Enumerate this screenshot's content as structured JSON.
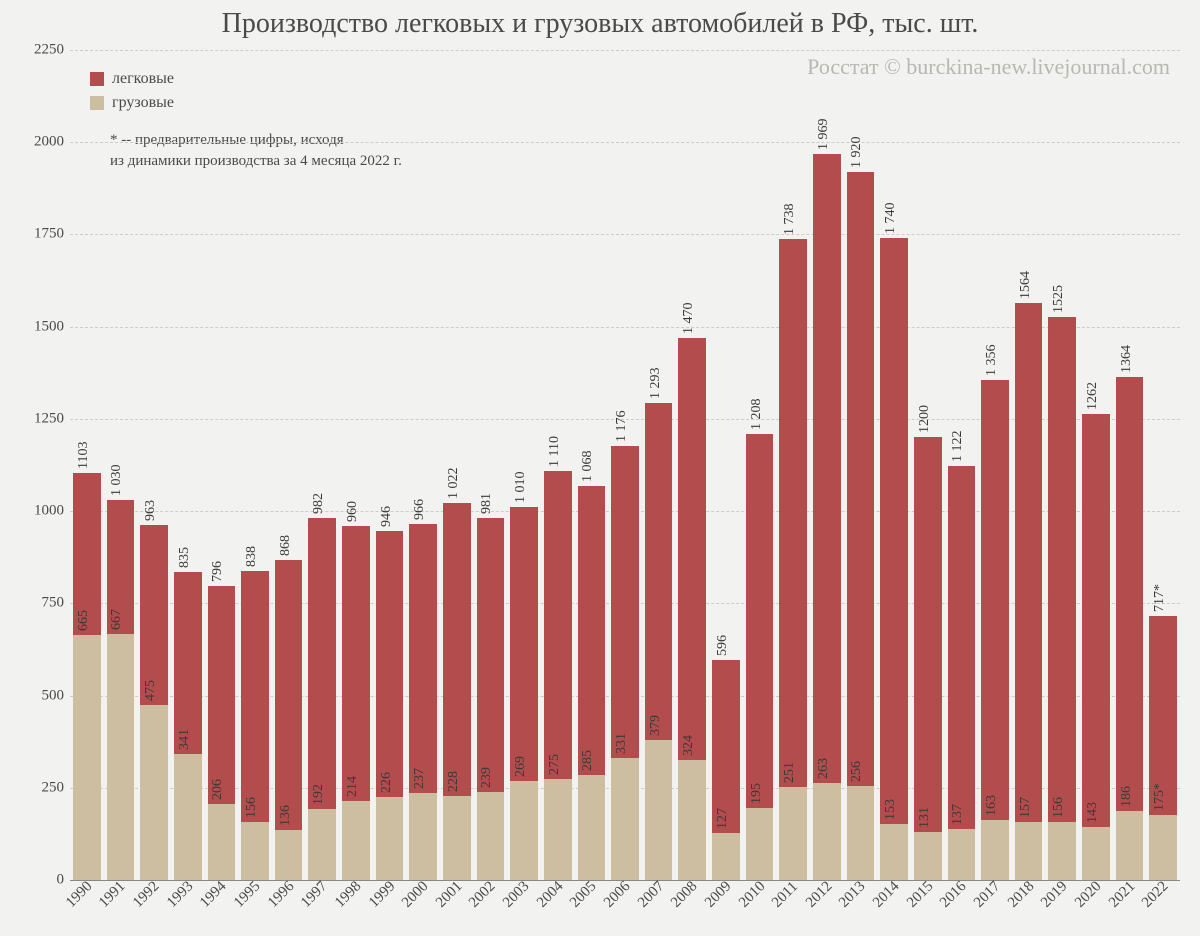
{
  "chart": {
    "type": "stacked-bar",
    "title": "Производство легковых и грузовых автомобилей в РФ, тыс. шт.",
    "credit": "Росстат © burckina-new.livejournal.com",
    "footnote_line1": "* -- предварительные цифры, исходя",
    "footnote_line2": "из динамики производства за 4 месяца 2022 г.",
    "ylim": [
      0,
      2250
    ],
    "ytick_step": 250,
    "yticks": [
      "0",
      "250",
      "500",
      "750",
      "1000",
      "1250",
      "1500",
      "1750",
      "2000",
      "2250"
    ],
    "background_color": "#f2f2f0",
    "grid_color": "#cccccc",
    "bar_width_ratio": 0.82,
    "label_fontsize": 14,
    "title_fontsize": 28,
    "title_color": "#4a4a4a",
    "credit_fontsize": 22,
    "credit_color": "#b8b8b0",
    "series": [
      {
        "key": "cars",
        "label": "легковые",
        "color": "#b34c4c"
      },
      {
        "key": "trucks",
        "label": "грузовые",
        "color": "#cdbea1"
      }
    ],
    "categories": [
      "1990",
      "1991",
      "1992",
      "1993",
      "1994",
      "1995",
      "1996",
      "1997",
      "1998",
      "1999",
      "2000",
      "2001",
      "2002",
      "2003",
      "2004",
      "2005",
      "2006",
      "2007",
      "2008",
      "2009",
      "2010",
      "2011",
      "2012",
      "2013",
      "2014",
      "2015",
      "2016",
      "2017",
      "2018",
      "2019",
      "2020",
      "2021",
      "2022"
    ],
    "data": [
      {
        "year": "1990",
        "cars": "1103",
        "cars_v": 1103,
        "trucks": "665",
        "trucks_v": 665
      },
      {
        "year": "1991",
        "cars": "1 030",
        "cars_v": 1030,
        "trucks": "667",
        "trucks_v": 667
      },
      {
        "year": "1992",
        "cars": "963",
        "cars_v": 963,
        "trucks": "475",
        "trucks_v": 475
      },
      {
        "year": "1993",
        "cars": "835",
        "cars_v": 835,
        "trucks": "341",
        "trucks_v": 341
      },
      {
        "year": "1994",
        "cars": "796",
        "cars_v": 796,
        "trucks": "206",
        "trucks_v": 206
      },
      {
        "year": "1995",
        "cars": "838",
        "cars_v": 838,
        "trucks": "156",
        "trucks_v": 156
      },
      {
        "year": "1996",
        "cars": "868",
        "cars_v": 868,
        "trucks": "136",
        "trucks_v": 136
      },
      {
        "year": "1997",
        "cars": "982",
        "cars_v": 982,
        "trucks": "192",
        "trucks_v": 192
      },
      {
        "year": "1998",
        "cars": "960",
        "cars_v": 960,
        "trucks": "214",
        "trucks_v": 214
      },
      {
        "year": "1999",
        "cars": "946",
        "cars_v": 946,
        "trucks": "226",
        "trucks_v": 226
      },
      {
        "year": "2000",
        "cars": "966",
        "cars_v": 966,
        "trucks": "237",
        "trucks_v": 237
      },
      {
        "year": "2001",
        "cars": "1 022",
        "cars_v": 1022,
        "trucks": "228",
        "trucks_v": 228
      },
      {
        "year": "2002",
        "cars": "981",
        "cars_v": 981,
        "trucks": "239",
        "trucks_v": 239
      },
      {
        "year": "2003",
        "cars": "1 010",
        "cars_v": 1010,
        "trucks": "269",
        "trucks_v": 269
      },
      {
        "year": "2004",
        "cars": "1 110",
        "cars_v": 1110,
        "trucks": "275",
        "trucks_v": 275
      },
      {
        "year": "2005",
        "cars": "1 068",
        "cars_v": 1068,
        "trucks": "285",
        "trucks_v": 285
      },
      {
        "year": "2006",
        "cars": "1 176",
        "cars_v": 1176,
        "trucks": "331",
        "trucks_v": 331
      },
      {
        "year": "2007",
        "cars": "1 293",
        "cars_v": 1293,
        "trucks": "379",
        "trucks_v": 379
      },
      {
        "year": "2008",
        "cars": "1 470",
        "cars_v": 1470,
        "trucks": "324",
        "trucks_v": 324
      },
      {
        "year": "2009",
        "cars": "596",
        "cars_v": 596,
        "trucks": "127",
        "trucks_v": 127
      },
      {
        "year": "2010",
        "cars": "1 208",
        "cars_v": 1208,
        "trucks": "195",
        "trucks_v": 195
      },
      {
        "year": "2011",
        "cars": "1 738",
        "cars_v": 1738,
        "trucks": "251",
        "trucks_v": 251
      },
      {
        "year": "2012",
        "cars": "1 969",
        "cars_v": 1969,
        "trucks": "263",
        "trucks_v": 263
      },
      {
        "year": "2013",
        "cars": "1 920",
        "cars_v": 1920,
        "trucks": "256",
        "trucks_v": 256
      },
      {
        "year": "2014",
        "cars": "1 740",
        "cars_v": 1740,
        "trucks": "153",
        "trucks_v": 153
      },
      {
        "year": "2015",
        "cars": "1200",
        "cars_v": 1200,
        "trucks": "131",
        "trucks_v": 131
      },
      {
        "year": "2016",
        "cars": "1 122",
        "cars_v": 1122,
        "trucks": "137",
        "trucks_v": 137
      },
      {
        "year": "2017",
        "cars": "1 356",
        "cars_v": 1356,
        "trucks": "163",
        "trucks_v": 163
      },
      {
        "year": "2018",
        "cars": "1564",
        "cars_v": 1564,
        "trucks": "157",
        "trucks_v": 157
      },
      {
        "year": "2019",
        "cars": "1525",
        "cars_v": 1525,
        "trucks": "156",
        "trucks_v": 156
      },
      {
        "year": "2020",
        "cars": "1262",
        "cars_v": 1262,
        "trucks": "143",
        "trucks_v": 143
      },
      {
        "year": "2021",
        "cars": "1364",
        "cars_v": 1364,
        "trucks": "186",
        "trucks_v": 186
      },
      {
        "year": "2022",
        "cars": "717*",
        "cars_v": 717,
        "trucks": "175*",
        "trucks_v": 175
      }
    ]
  }
}
